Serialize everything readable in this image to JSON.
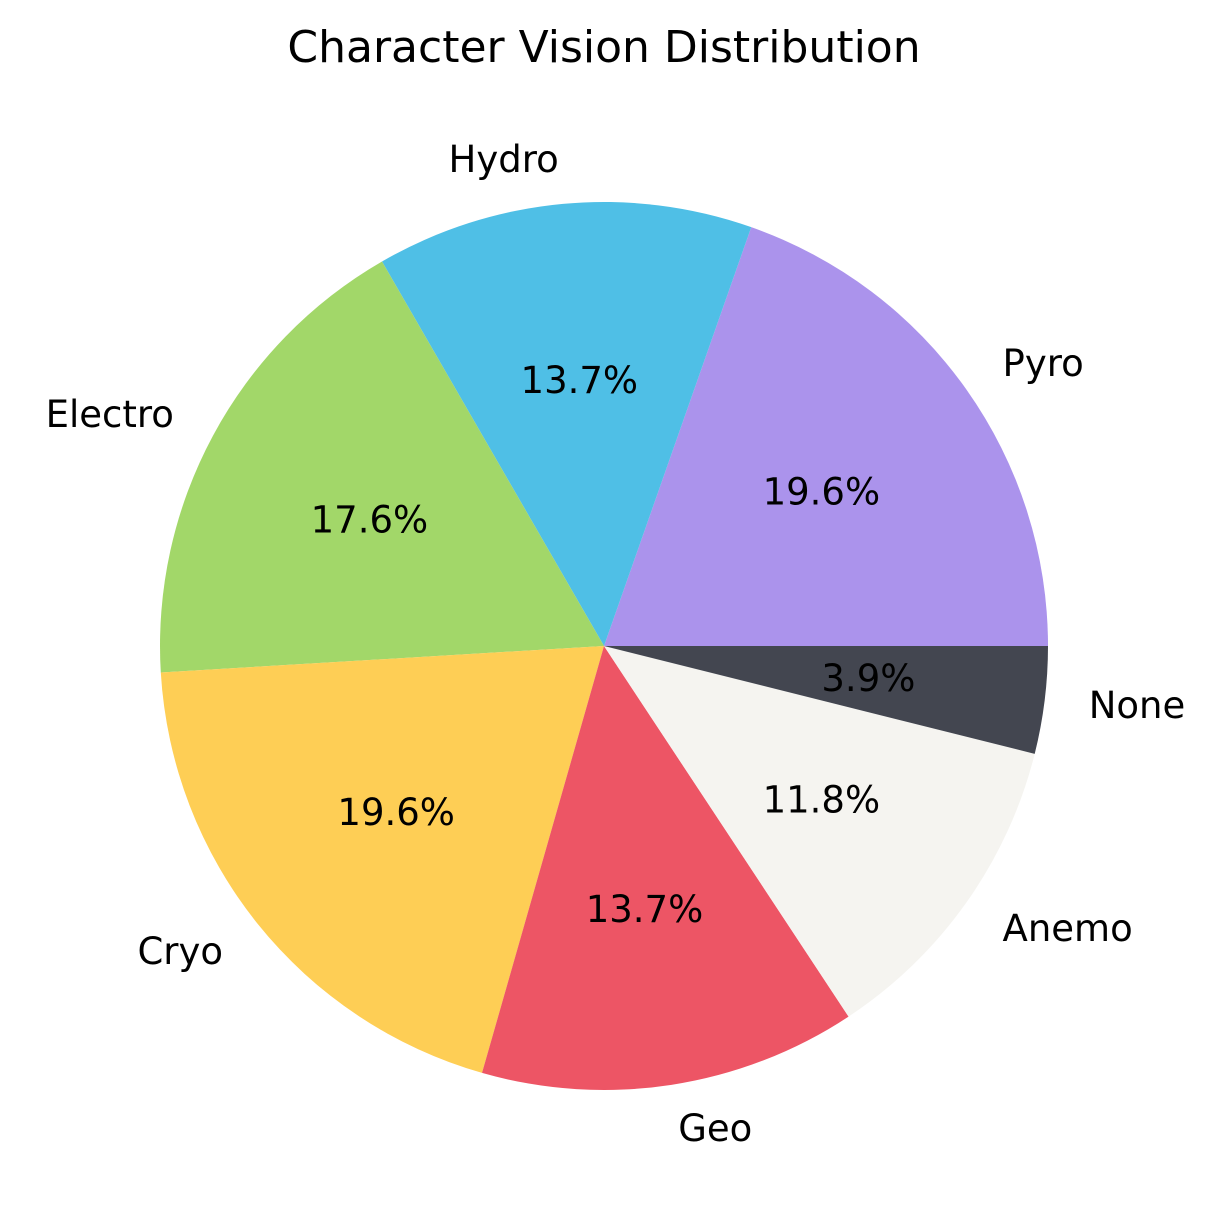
{
  "chart_data": {
    "type": "pie",
    "title": "Character Vision Distribution",
    "start_angle_deg": 0,
    "direction": "counterclockwise",
    "slices": [
      {
        "label": "Pyro",
        "value": 19.6,
        "pct_label": "19.6%",
        "color": "#AB93EC"
      },
      {
        "label": "Hydro",
        "value": 13.7,
        "pct_label": "13.7%",
        "color": "#4FBFE6"
      },
      {
        "label": "Electro",
        "value": 17.6,
        "pct_label": "17.6%",
        "color": "#A2D769"
      },
      {
        "label": "Cryo",
        "value": 19.6,
        "pct_label": "19.6%",
        "color": "#FECE55"
      },
      {
        "label": "Geo",
        "value": 13.7,
        "pct_label": "13.7%",
        "color": "#ED5565"
      },
      {
        "label": "Anemo",
        "value": 11.8,
        "pct_label": "11.8%",
        "color": "#F5F4F0"
      },
      {
        "label": "None",
        "value": 3.9,
        "pct_label": "3.9%",
        "color": "#434650"
      }
    ]
  }
}
